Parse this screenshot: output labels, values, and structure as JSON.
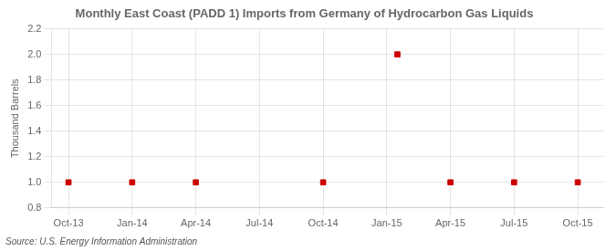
{
  "chart_data": {
    "type": "scatter",
    "title": "Monthly East Coast (PADD 1) Imports from Germany of Hydrocarbon Gas Liquids",
    "ylabel": "Thousand Barrels",
    "annotations": [
      "Source: U.S. Energy Information Administration"
    ],
    "x": [
      0,
      3,
      6,
      12,
      15.5,
      18,
      21,
      24
    ],
    "values": [
      1.0,
      1.0,
      1.0,
      1.0,
      2.0,
      1.0,
      1.0,
      1.0
    ],
    "color": "#cc0000",
    "marker": "square",
    "xlim": [
      -0.8,
      25.2
    ],
    "xticks": [
      {
        "value": 0,
        "label": "Oct-13"
      },
      {
        "value": 3,
        "label": "Jan-14"
      },
      {
        "value": 6,
        "label": "Apr-14"
      },
      {
        "value": 9,
        "label": "Jul-14"
      },
      {
        "value": 12,
        "label": "Oct-14"
      },
      {
        "value": 15,
        "label": "Jan-15"
      },
      {
        "value": 18,
        "label": "Apr-15"
      },
      {
        "value": 21,
        "label": "Jul-15"
      },
      {
        "value": 24,
        "label": "Oct-15"
      }
    ],
    "ylim": [
      0.8,
      2.2
    ],
    "yticks": [
      0.8,
      {
        "value": 1.0,
        "label": "1.0"
      },
      1.2,
      1.4,
      1.6,
      1.8,
      {
        "value": 2.0,
        "label": "2.0"
      },
      2.2
    ],
    "grid": true
  }
}
